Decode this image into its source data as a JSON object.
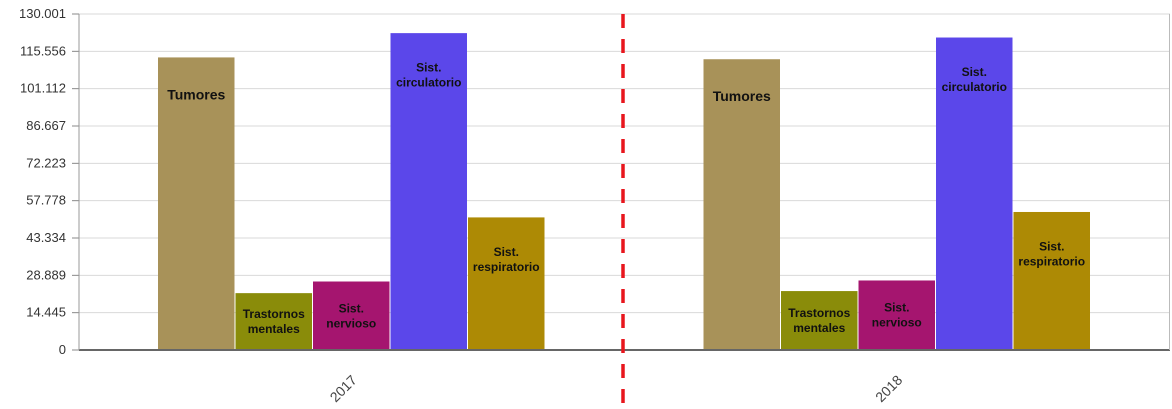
{
  "chart_data": {
    "type": "bar",
    "categories": [
      "2017",
      "2018"
    ],
    "series": [
      {
        "label_lines": [
          "Tumores"
        ],
        "values": [
          113200,
          112500
        ],
        "color": "#a89259"
      },
      {
        "label_lines": [
          "Trastornos",
          "mentales"
        ],
        "values": [
          22000,
          22800
        ],
        "color": "#8a8c0a"
      },
      {
        "label_lines": [
          "Sist.",
          "nervioso"
        ],
        "values": [
          26500,
          26900
        ],
        "color": "#a5156f"
      },
      {
        "label_lines": [
          "Sist.",
          "circulatorio"
        ],
        "values": [
          122600,
          120900
        ],
        "color": "#5b47ea"
      },
      {
        "label_lines": [
          "Sist.",
          "respiratorio"
        ],
        "values": [
          51300,
          53400
        ],
        "color": "#ad8a05"
      }
    ],
    "y_ticks": [
      "0",
      "14.445",
      "28.889",
      "43.334",
      "57.778",
      "72.223",
      "86.667",
      "101.112",
      "115.556",
      "130.001"
    ],
    "ylim": [
      0,
      130001
    ],
    "grid": true,
    "separator_color": "#e8161d"
  }
}
